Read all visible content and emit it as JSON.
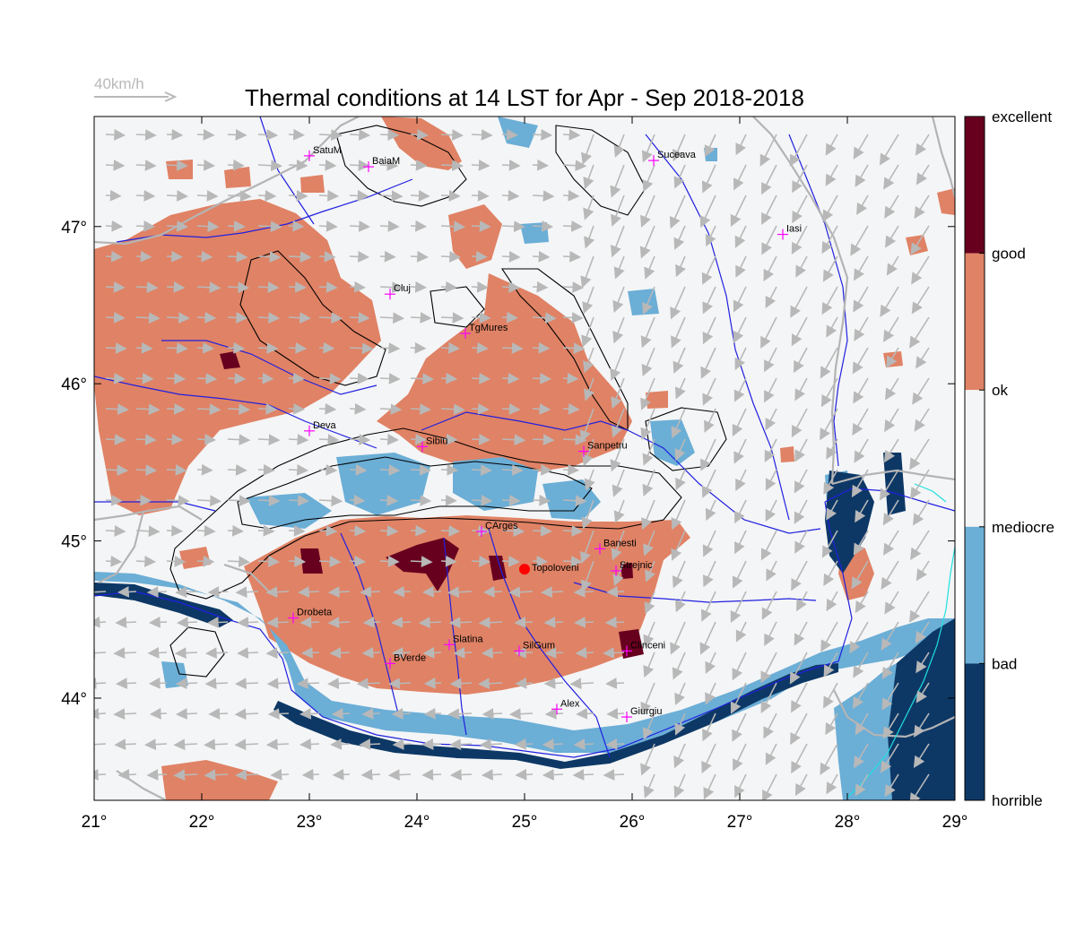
{
  "title": "Thermal conditions at 14 LST for Apr - Sep  2018-2018",
  "wind_scale_label": "40km/h",
  "axes": {
    "lon_min": 21,
    "lon_max": 29,
    "lat_min": 43.35,
    "lat_max": 47.7,
    "x_ticks": [
      {
        "value": 21,
        "label": "21°"
      },
      {
        "value": 22,
        "label": "22°"
      },
      {
        "value": 23,
        "label": "23°"
      },
      {
        "value": 24,
        "label": "24°"
      },
      {
        "value": 25,
        "label": "25°"
      },
      {
        "value": 26,
        "label": "26°"
      },
      {
        "value": 27,
        "label": "27°"
      },
      {
        "value": 28,
        "label": "28°"
      },
      {
        "value": 29,
        "label": "29°"
      }
    ],
    "y_ticks": [
      {
        "value": 44,
        "label": "44°"
      },
      {
        "value": 45,
        "label": "45°"
      },
      {
        "value": 46,
        "label": "46°"
      },
      {
        "value": 47,
        "label": "47°"
      }
    ]
  },
  "legend": {
    "classes": [
      {
        "label": "excellent",
        "color": "#67001f"
      },
      {
        "label": "good",
        "color": "#e08265"
      },
      {
        "label": "ok",
        "color": "#f4f5f6"
      },
      {
        "label": "mediocre",
        "color": "#6baed6"
      },
      {
        "label": "bad",
        "color": "#0d3866"
      },
      {
        "label": "horrible",
        "color": "#0d3866"
      }
    ]
  },
  "cities": [
    {
      "name": "SatuM",
      "lon": 23.0,
      "lat": 47.45
    },
    {
      "name": "BaiaM",
      "lon": 23.55,
      "lat": 47.38
    },
    {
      "name": "Suceava",
      "lon": 26.2,
      "lat": 47.42
    },
    {
      "name": "Iasi",
      "lon": 27.4,
      "lat": 46.95
    },
    {
      "name": "Cluj",
      "lon": 23.75,
      "lat": 46.57
    },
    {
      "name": "TgMures",
      "lon": 24.45,
      "lat": 46.32
    },
    {
      "name": "Deva",
      "lon": 23.0,
      "lat": 45.7
    },
    {
      "name": "Sibiu",
      "lon": 24.05,
      "lat": 45.6
    },
    {
      "name": "Sanpetru",
      "lon": 25.55,
      "lat": 45.57
    },
    {
      "name": "CArges",
      "lon": 24.6,
      "lat": 45.06
    },
    {
      "name": "Banesti",
      "lon": 25.7,
      "lat": 44.95
    },
    {
      "name": "Strejnic",
      "lon": 25.85,
      "lat": 44.81
    },
    {
      "name": "Drobeta",
      "lon": 22.85,
      "lat": 44.51
    },
    {
      "name": "Slatina",
      "lon": 24.3,
      "lat": 44.34
    },
    {
      "name": "SilGum",
      "lon": 24.95,
      "lat": 44.3
    },
    {
      "name": "Clinceni",
      "lon": 25.95,
      "lat": 44.3
    },
    {
      "name": "BVerde",
      "lon": 23.75,
      "lat": 44.22
    },
    {
      "name": "Alex",
      "lon": 25.3,
      "lat": 43.93
    },
    {
      "name": "Giurgiu",
      "lon": 25.95,
      "lat": 43.88
    }
  ],
  "marker": {
    "name": "Topoloveni",
    "lon": 25.0,
    "lat": 44.82,
    "color": "#ff0000"
  },
  "colors": {
    "ok": "#f4f5f6",
    "good": "#e08265",
    "excellent": "#67001f",
    "mediocre": "#6baed6",
    "bad": "#0d3866",
    "river": "#2020e0",
    "border": "#b4b4b4",
    "wind": "#b8b8b8",
    "contour": "#000000",
    "city_cross": "#ff00ff"
  }
}
